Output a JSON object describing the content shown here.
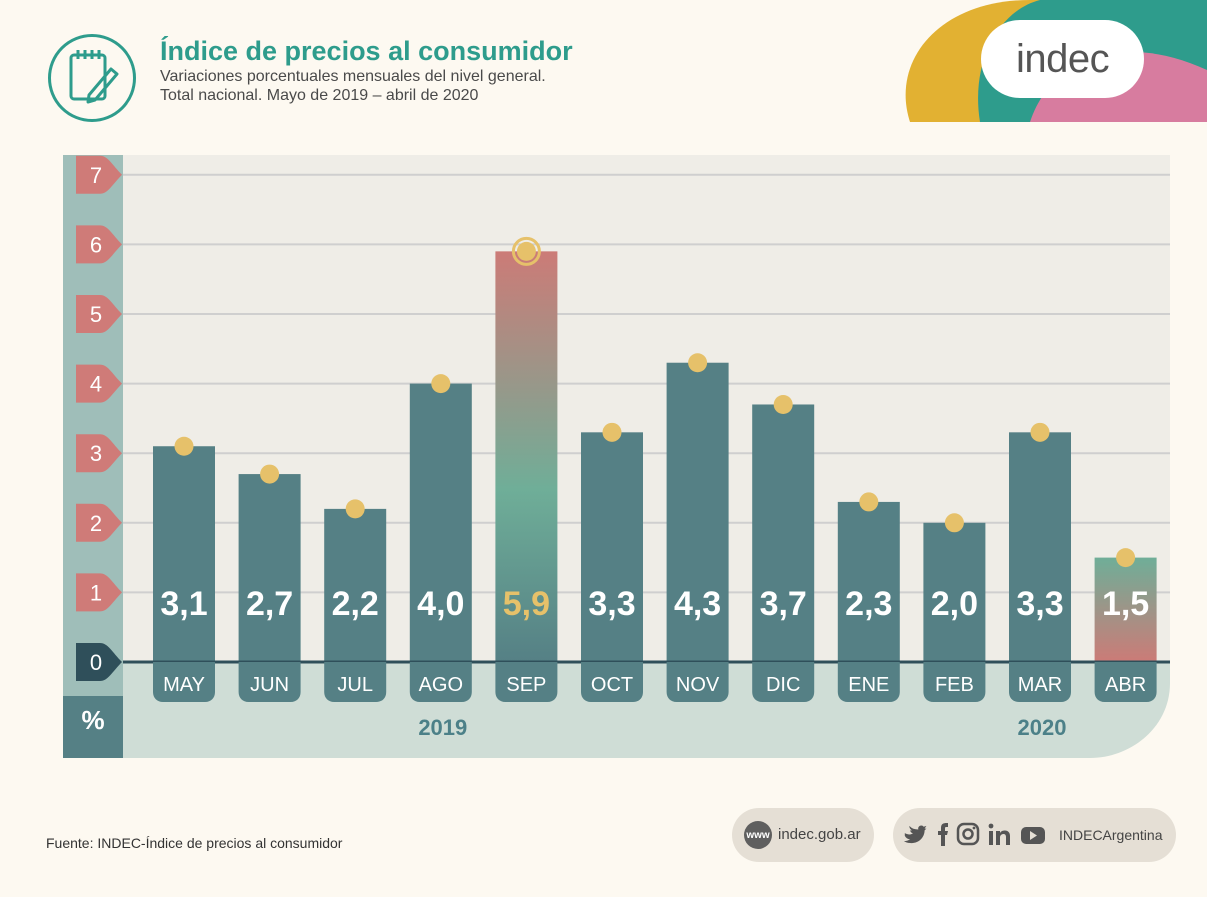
{
  "header": {
    "title": "Índice de precios al consumidor",
    "subtitle_line1": "Variaciones porcentuales mensuales del nivel general.",
    "subtitle_line2": "Total nacional. Mayo de 2019 – abril de 2020",
    "logo_text": "indec"
  },
  "chart_data": {
    "type": "bar",
    "categories": [
      "MAY",
      "JUN",
      "JUL",
      "AGO",
      "SEP",
      "OCT",
      "NOV",
      "DIC",
      "ENE",
      "FEB",
      "MAR",
      "ABR"
    ],
    "values": [
      3.1,
      2.7,
      2.2,
      4.0,
      5.9,
      3.3,
      4.3,
      3.7,
      2.3,
      2.0,
      3.3,
      1.5
    ],
    "value_labels": [
      "3,1",
      "2,7",
      "2,2",
      "4,0",
      "5,9",
      "3,3",
      "4,3",
      "3,7",
      "2,3",
      "2,0",
      "3,3",
      "1,5"
    ],
    "highlight_category": "SEP",
    "year_labels": [
      {
        "label": "2019",
        "under": "AGO"
      },
      {
        "label": "2020",
        "under": "MAR"
      }
    ],
    "y_ticks": [
      0,
      1,
      2,
      3,
      4,
      5,
      6,
      7
    ],
    "ylabel": "%",
    "ylim": [
      0,
      7
    ],
    "grid": true,
    "colors": {
      "bar": "#558085",
      "highlight_top": "#cc7b77",
      "highlight_mid": "#6fae98",
      "last_top": "#6fae98",
      "last_bottom": "#cc7b77",
      "marker": "#e6c16a",
      "tick_badge": "#cf7b78",
      "zero_badge": "#2f4f5a",
      "axis_strip": "#9fbeb9",
      "plot_bg": "#efede7",
      "bottom_band": "#cfddd6",
      "month_tag": "#558085",
      "year_text": "#4c8088",
      "highlight_label": "#e6c16a"
    }
  },
  "footer": {
    "source": "Fuente: INDEC-Índice de precios al consumidor",
    "web_icon": "www",
    "web": "indec.gob.ar",
    "social_handle": "INDECArgentina",
    "social_icons": [
      "twitter-icon",
      "facebook-icon",
      "instagram-icon",
      "linkedin-icon",
      "youtube-icon"
    ]
  }
}
